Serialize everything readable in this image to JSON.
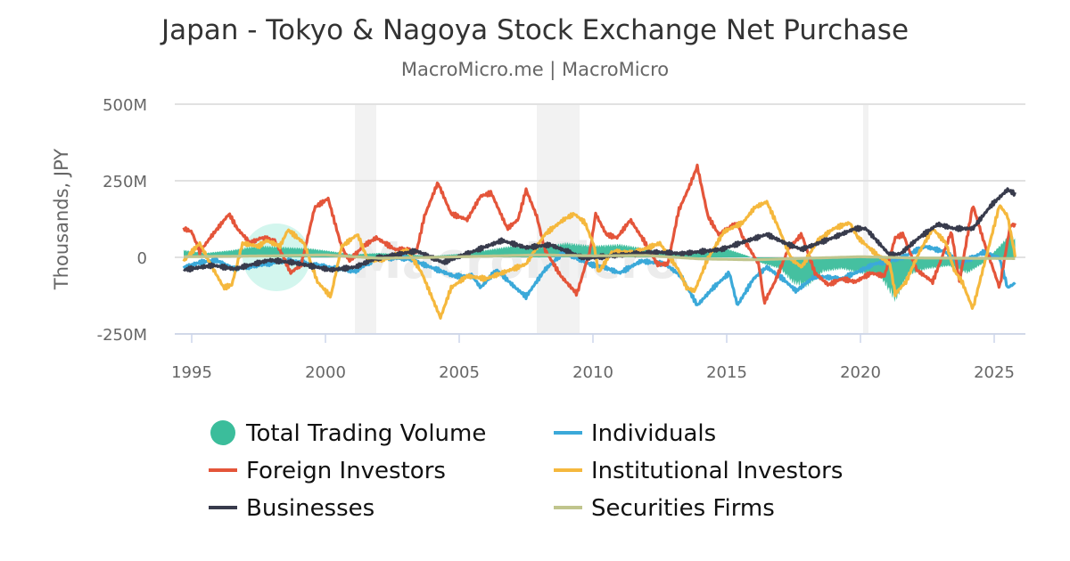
{
  "chart_data": {
    "type": "line",
    "title": "Japan - Tokyo & Nagoya Stock Exchange Net Purchase",
    "subtitle": "MacroMicro.me | MacroMicro",
    "watermark": "MacroMicro",
    "ylabel": "Thousands, JPY",
    "xlabel": "",
    "xlim": [
      1994.6,
      2026.2
    ],
    "ylim": [
      -250,
      500
    ],
    "y_unit": "M",
    "y_ticks": [
      {
        "value": 500,
        "label": "500M"
      },
      {
        "value": 250,
        "label": "250M"
      },
      {
        "value": 0,
        "label": "0"
      },
      {
        "value": -250,
        "label": "-250M"
      }
    ],
    "x_ticks": [
      {
        "value": 1995,
        "label": "1995"
      },
      {
        "value": 2000,
        "label": "2000"
      },
      {
        "value": 2005,
        "label": "2005"
      },
      {
        "value": 2010,
        "label": "2010"
      },
      {
        "value": 2015,
        "label": "2015"
      },
      {
        "value": 2020,
        "label": "2020"
      },
      {
        "value": 2025,
        "label": "2025"
      }
    ],
    "grid": true,
    "legend_placement": "bottom",
    "shaded_periods": [
      [
        2001.1,
        2001.9
      ],
      [
        2007.9,
        2009.5
      ],
      [
        2020.1,
        2020.3
      ]
    ],
    "shade_color": "#f2f2f2",
    "series": [
      {
        "name": "Total Trading Volume",
        "type": "area",
        "color": "#3bbd9b",
        "marker": "circle",
        "points": [
          [
            1994.7,
            25
          ],
          [
            1995.5,
            15
          ],
          [
            1996.5,
            25
          ],
          [
            1997.5,
            40
          ],
          [
            1998.5,
            35
          ],
          [
            1999.5,
            30
          ],
          [
            2000.3,
            20
          ],
          [
            2001,
            10
          ],
          [
            2002,
            15
          ],
          [
            2003,
            10
          ],
          [
            2004,
            5
          ],
          [
            2005,
            12
          ],
          [
            2006,
            25
          ],
          [
            2007,
            40
          ],
          [
            2008,
            35
          ],
          [
            2009,
            50
          ],
          [
            2010,
            40
          ],
          [
            2011,
            45
          ],
          [
            2012,
            30
          ],
          [
            2013,
            10
          ],
          [
            2014,
            25
          ],
          [
            2015,
            30
          ],
          [
            2015.8,
            5
          ],
          [
            2016.3,
            -20
          ],
          [
            2017,
            -40
          ],
          [
            2017.5,
            -90
          ],
          [
            2018,
            -100
          ],
          [
            2018.6,
            -50
          ],
          [
            2019.3,
            -40
          ],
          [
            2020,
            -55
          ],
          [
            2020.7,
            -60
          ],
          [
            2021.3,
            -150
          ],
          [
            2021.8,
            -60
          ],
          [
            2022.5,
            -40
          ],
          [
            2023.3,
            -30
          ],
          [
            2024,
            -55
          ],
          [
            2024.6,
            -20
          ],
          [
            2025.2,
            40
          ],
          [
            2025.6,
            80
          ],
          [
            2025.8,
            60
          ]
        ]
      },
      {
        "name": "Foreign Investors",
        "type": "line",
        "color": "#e4553a",
        "points": [
          [
            1994.7,
            94
          ],
          [
            1995.0,
            84
          ],
          [
            1995.3,
            17
          ],
          [
            1995.7,
            65
          ],
          [
            1996.4,
            142
          ],
          [
            1996.7,
            94
          ],
          [
            1997.2,
            46
          ],
          [
            1997.6,
            64
          ],
          [
            1998.1,
            55
          ],
          [
            1998.4,
            7
          ],
          [
            1998.7,
            -51
          ],
          [
            1999.1,
            -22
          ],
          [
            1999.6,
            163
          ],
          [
            2000.1,
            192
          ],
          [
            2000.6,
            35
          ],
          [
            2000.9,
            -12
          ],
          [
            2001.4,
            36
          ],
          [
            2001.9,
            64
          ],
          [
            2002.6,
            26
          ],
          [
            2003.05,
            26
          ],
          [
            2003.4,
            17
          ],
          [
            2003.7,
            134
          ],
          [
            2004.2,
            244
          ],
          [
            2004.7,
            142
          ],
          [
            2005.3,
            123
          ],
          [
            2005.8,
            200
          ],
          [
            2006.2,
            210
          ],
          [
            2006.8,
            94
          ],
          [
            2007.2,
            123
          ],
          [
            2007.5,
            221
          ],
          [
            2007.9,
            134
          ],
          [
            2008.2,
            26
          ],
          [
            2008.8,
            -61
          ],
          [
            2009.4,
            -119
          ],
          [
            2009.9,
            26
          ],
          [
            2010.1,
            142
          ],
          [
            2010.5,
            75
          ],
          [
            2010.9,
            64
          ],
          [
            2011.4,
            122
          ],
          [
            2011.9,
            55
          ],
          [
            2012.4,
            -22
          ],
          [
            2012.8,
            -22
          ],
          [
            2013.2,
            152
          ],
          [
            2013.6,
            230
          ],
          [
            2013.9,
            297
          ],
          [
            2014.3,
            134
          ],
          [
            2014.7,
            75
          ],
          [
            2015.4,
            113
          ],
          [
            2015.6,
            64
          ],
          [
            2016.2,
            -22
          ],
          [
            2016.4,
            -148
          ],
          [
            2016.8,
            -80
          ],
          [
            2017.3,
            26
          ],
          [
            2017.8,
            75
          ],
          [
            2018.3,
            -51
          ],
          [
            2018.8,
            -90
          ],
          [
            2019.3,
            -70
          ],
          [
            2019.8,
            -80
          ],
          [
            2020.4,
            -51
          ],
          [
            2020.9,
            -61
          ],
          [
            2021.3,
            64
          ],
          [
            2021.6,
            75
          ],
          [
            2022.1,
            -41
          ],
          [
            2022.7,
            -80
          ],
          [
            2023.4,
            84
          ],
          [
            2023.7,
            -80
          ],
          [
            2024.2,
            171
          ],
          [
            2024.6,
            55
          ],
          [
            2025.2,
            -99
          ],
          [
            2025.6,
            104
          ],
          [
            2025.8,
            107
          ]
        ]
      },
      {
        "name": "Businesses",
        "type": "line",
        "color": "#383b4c",
        "points": [
          [
            1994.7,
            -41
          ],
          [
            1995.8,
            -26
          ],
          [
            1996.6,
            -38
          ],
          [
            1997.9,
            -9
          ],
          [
            1998.8,
            -17
          ],
          [
            2000.2,
            -41
          ],
          [
            2001.1,
            -32
          ],
          [
            2001.9,
            -3
          ],
          [
            2003.4,
            21
          ],
          [
            2004.4,
            -17
          ],
          [
            2005.3,
            12
          ],
          [
            2006.6,
            55
          ],
          [
            2007.5,
            32
          ],
          [
            2008.4,
            41
          ],
          [
            2009.7,
            -3
          ],
          [
            2010.9,
            7
          ],
          [
            2012.4,
            17
          ],
          [
            2013.3,
            12
          ],
          [
            2014.8,
            26
          ],
          [
            2015.8,
            55
          ],
          [
            2016.5,
            75
          ],
          [
            2017.2,
            46
          ],
          [
            2017.8,
            26
          ],
          [
            2019.0,
            65
          ],
          [
            2019.8,
            94
          ],
          [
            2020.2,
            94
          ],
          [
            2021.1,
            7
          ],
          [
            2021.5,
            12
          ],
          [
            2022.2,
            65
          ],
          [
            2022.9,
            108
          ],
          [
            2023.5,
            94
          ],
          [
            2024.2,
            94
          ],
          [
            2024.9,
            171
          ],
          [
            2025.5,
            221
          ],
          [
            2025.8,
            206
          ]
        ]
      },
      {
        "name": "Individuals",
        "type": "line",
        "color": "#3ba9d9",
        "points": [
          [
            1994.7,
            -32
          ],
          [
            1995.3,
            -17
          ],
          [
            1995.9,
            -9
          ],
          [
            1996.6,
            -38
          ],
          [
            1997.5,
            -26
          ],
          [
            1998.6,
            -9
          ],
          [
            1999.7,
            -26
          ],
          [
            2001.1,
            -46
          ],
          [
            2001.9,
            -3
          ],
          [
            2003.05,
            -3
          ],
          [
            2004.2,
            -41
          ],
          [
            2004.8,
            -61
          ],
          [
            2005.5,
            -61
          ],
          [
            2005.8,
            -99
          ],
          [
            2006.4,
            -41
          ],
          [
            2007.1,
            -99
          ],
          [
            2007.5,
            -128
          ],
          [
            2008.2,
            -41
          ],
          [
            2008.9,
            17
          ],
          [
            2009.9,
            -23
          ],
          [
            2010.4,
            -32
          ],
          [
            2011.0,
            -51
          ],
          [
            2011.8,
            -12
          ],
          [
            2012.7,
            -22
          ],
          [
            2013.3,
            -61
          ],
          [
            2013.9,
            -157
          ],
          [
            2014.5,
            -99
          ],
          [
            2015.1,
            -51
          ],
          [
            2015.4,
            -157
          ],
          [
            2016.0,
            -70
          ],
          [
            2016.5,
            -32
          ],
          [
            2017.1,
            -70
          ],
          [
            2017.6,
            -110
          ],
          [
            2018.3,
            -61
          ],
          [
            2019.3,
            -70
          ],
          [
            2020.06,
            -41
          ],
          [
            2020.5,
            -22
          ],
          [
            2021.5,
            -3
          ],
          [
            2022.4,
            36
          ],
          [
            2023.2,
            17
          ],
          [
            2023.7,
            -22
          ],
          [
            2024.6,
            17
          ],
          [
            2025.2,
            -3
          ],
          [
            2025.5,
            -99
          ],
          [
            2025.8,
            -84
          ]
        ]
      },
      {
        "name": "Institutional Investors",
        "type": "line",
        "color": "#f5b83d",
        "points": [
          [
            1994.7,
            -12
          ],
          [
            1995.3,
            46
          ],
          [
            1995.7,
            -22
          ],
          [
            1996.2,
            -99
          ],
          [
            1996.5,
            -90
          ],
          [
            1996.9,
            46
          ],
          [
            1997.5,
            36
          ],
          [
            1997.8,
            55
          ],
          [
            1998.3,
            36
          ],
          [
            1998.6,
            90
          ],
          [
            1999.2,
            46
          ],
          [
            1999.7,
            -80
          ],
          [
            2000.2,
            -128
          ],
          [
            2000.6,
            35
          ],
          [
            2001.2,
            75
          ],
          [
            2001.6,
            -12
          ],
          [
            2002.4,
            -3
          ],
          [
            2003.05,
            26
          ],
          [
            2003.6,
            -51
          ],
          [
            2004.3,
            -197
          ],
          [
            2004.7,
            -99
          ],
          [
            2005.3,
            -61
          ],
          [
            2006.0,
            -70
          ],
          [
            2006.6,
            -51
          ],
          [
            2007.5,
            -22
          ],
          [
            2008.2,
            75
          ],
          [
            2008.9,
            123
          ],
          [
            2009.3,
            142
          ],
          [
            2009.7,
            113
          ],
          [
            2010.05,
            36
          ],
          [
            2010.2,
            -51
          ],
          [
            2010.7,
            17
          ],
          [
            2011.6,
            17
          ],
          [
            2012.5,
            46
          ],
          [
            2013.2,
            -41
          ],
          [
            2013.5,
            -99
          ],
          [
            2013.8,
            -110
          ],
          [
            2014.3,
            -3
          ],
          [
            2014.9,
            84
          ],
          [
            2015.6,
            113
          ],
          [
            2016.05,
            163
          ],
          [
            2016.5,
            181
          ],
          [
            2016.9,
            104
          ],
          [
            2017.4,
            -3
          ],
          [
            2017.8,
            -32
          ],
          [
            2018.4,
            55
          ],
          [
            2019.0,
            94
          ],
          [
            2019.6,
            113
          ],
          [
            2019.9,
            65
          ],
          [
            2020.5,
            17
          ],
          [
            2021.1,
            -22
          ],
          [
            2021.3,
            -119
          ],
          [
            2021.7,
            -80
          ],
          [
            2022.2,
            17
          ],
          [
            2022.7,
            94
          ],
          [
            2023.2,
            46
          ],
          [
            2023.5,
            -41
          ],
          [
            2023.8,
            -80
          ],
          [
            2024.2,
            -168
          ],
          [
            2024.6,
            -32
          ],
          [
            2025.2,
            171
          ],
          [
            2025.5,
            134
          ],
          [
            2025.8,
            -3
          ]
        ]
      },
      {
        "name": "Securities Firms",
        "type": "line",
        "color": "#c0c58d",
        "points": [
          [
            1994.7,
            2
          ],
          [
            1998,
            5
          ],
          [
            2000,
            8
          ],
          [
            2002,
            -3
          ],
          [
            2004,
            0
          ],
          [
            2006,
            4
          ],
          [
            2008,
            8
          ],
          [
            2010,
            5
          ],
          [
            2012,
            6
          ],
          [
            2014,
            -5
          ],
          [
            2016,
            -8
          ],
          [
            2018,
            -3
          ],
          [
            2020,
            2
          ],
          [
            2022,
            -2
          ],
          [
            2024,
            -3
          ],
          [
            2025.8,
            -4
          ]
        ]
      }
    ]
  }
}
